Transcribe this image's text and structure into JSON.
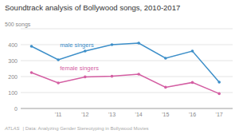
{
  "chart_data": {
    "type": "line",
    "title": "Soundtrack analysis of Bollywood songs, 2010-2017",
    "x": [
      2010,
      2011,
      2012,
      2013,
      2014,
      2015,
      2016,
      2017
    ],
    "series": [
      {
        "name": "male singers",
        "color": "#3d8fc9",
        "marker": "circle",
        "values": [
          390,
          305,
          360,
          400,
          410,
          315,
          360,
          165
        ]
      },
      {
        "name": "female singers",
        "color": "#d45fa3",
        "marker": "circle",
        "values": [
          225,
          160,
          198,
          202,
          215,
          133,
          163,
          93
        ]
      }
    ],
    "xlim": [
      2009.6,
      2017.5
    ],
    "xticks": [
      {
        "value": 2011,
        "label": "'11"
      },
      {
        "value": 2012,
        "label": "'12"
      },
      {
        "value": 2013,
        "label": "'13"
      },
      {
        "value": 2014,
        "label": "'14"
      },
      {
        "value": 2015,
        "label": "'15"
      },
      {
        "value": 2016,
        "label": "'16"
      },
      {
        "value": 2017,
        "label": "'17"
      }
    ],
    "ylim": [
      0,
      500
    ],
    "yticks": [
      0,
      100,
      200,
      300,
      400,
      {
        "value": 500,
        "label": "500 songs"
      }
    ],
    "grid": true,
    "annotations": [
      "ATLAS",
      "| Data: Analyzing Gender Stereotyping in Bollywood Movies"
    ]
  }
}
